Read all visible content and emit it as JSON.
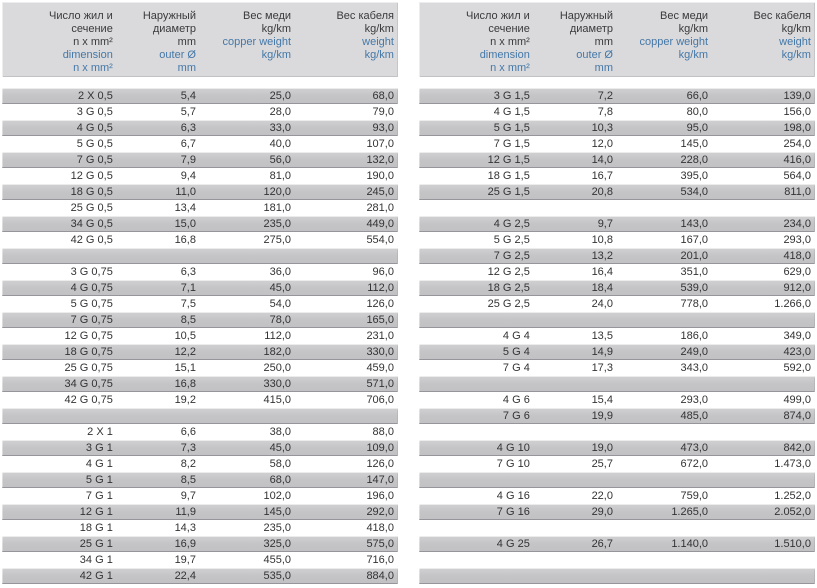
{
  "colors": {
    "accent_blue": "#4478a8",
    "row_gray": "#c4c4c6",
    "row_gray_border": "#96969a",
    "header_bg": "#dadadc",
    "text": "#333335"
  },
  "header_columns": [
    {
      "name": "dimension",
      "lines": [
        {
          "text": "Число жил и",
          "lang": "ru"
        },
        {
          "text": "сечение",
          "lang": "ru"
        },
        {
          "text": "n x mm²",
          "lang": "ru"
        },
        {
          "text": "dimension",
          "lang": "en"
        },
        {
          "text": "n x mm²",
          "lang": "en"
        }
      ]
    },
    {
      "name": "outer-diameter",
      "lines": [
        {
          "text": "Наружный",
          "lang": "ru"
        },
        {
          "text": "диаметр",
          "lang": "ru"
        },
        {
          "text": "mm",
          "lang": "ru"
        },
        {
          "text": "outer Ø",
          "lang": "en"
        },
        {
          "text": "mm",
          "lang": "en"
        }
      ]
    },
    {
      "name": "copper-weight",
      "lines": [
        {
          "text": "Вес меди",
          "lang": "ru"
        },
        {
          "text": "kg/km",
          "lang": "ru"
        },
        {
          "text": "copper weight",
          "lang": "en"
        },
        {
          "text": "kg/km",
          "lang": "en"
        }
      ]
    },
    {
      "name": "cable-weight",
      "lines": [
        {
          "text": "Вес кабеля",
          "lang": "ru"
        },
        {
          "text": "kg/km",
          "lang": "ru"
        },
        {
          "text": "weight",
          "lang": "en"
        },
        {
          "text": "kg/km",
          "lang": "en"
        }
      ]
    }
  ],
  "tables": {
    "left": {
      "rows": [
        [
          "2 X 0,5",
          "5,4",
          "25,0",
          "68,0"
        ],
        [
          "3 G 0,5",
          "5,7",
          "28,0",
          "79,0"
        ],
        [
          "4 G 0,5",
          "6,3",
          "33,0",
          "93,0"
        ],
        [
          "5 G 0,5",
          "6,7",
          "40,0",
          "107,0"
        ],
        [
          "7 G 0,5",
          "7,9",
          "56,0",
          "132,0"
        ],
        [
          "12 G 0,5",
          "9,4",
          "81,0",
          "190,0"
        ],
        [
          "18 G 0,5",
          "11,0",
          "120,0",
          "245,0"
        ],
        [
          "25 G 0,5",
          "13,4",
          "181,0",
          "281,0"
        ],
        [
          "34 G 0,5",
          "15,0",
          "235,0",
          "449,0"
        ],
        [
          "42 G 0,5",
          "16,8",
          "275,0",
          "554,0"
        ],
        null,
        [
          "3 G 0,75",
          "6,3",
          "36,0",
          "96,0"
        ],
        [
          "4 G 0,75",
          "7,1",
          "45,0",
          "112,0"
        ],
        [
          "5 G 0,75",
          "7,5",
          "54,0",
          "126,0"
        ],
        [
          "7 G 0,75",
          "8,5",
          "78,0",
          "165,0"
        ],
        [
          "12 G 0,75",
          "10,5",
          "112,0",
          "231,0"
        ],
        [
          "18 G 0,75",
          "12,2",
          "182,0",
          "330,0"
        ],
        [
          "25 G 0,75",
          "15,1",
          "250,0",
          "459,0"
        ],
        [
          "34 G 0,75",
          "16,8",
          "330,0",
          "571,0"
        ],
        [
          "42 G 0,75",
          "19,2",
          "415,0",
          "706,0"
        ],
        null,
        [
          "2 X 1",
          "6,6",
          "38,0",
          "88,0"
        ],
        [
          "3 G 1",
          "7,3",
          "45,0",
          "109,0"
        ],
        [
          "4 G 1",
          "8,2",
          "58,0",
          "126,0"
        ],
        [
          "5 G 1",
          "8,5",
          "68,0",
          "147,0"
        ],
        [
          "7 G 1",
          "9,7",
          "102,0",
          "196,0"
        ],
        [
          "12 G 1",
          "11,9",
          "145,0",
          "292,0"
        ],
        [
          "18 G 1",
          "14,3",
          "235,0",
          "418,0"
        ],
        [
          "25 G 1",
          "16,9",
          "325,0",
          "575,0"
        ],
        [
          "34 G 1",
          "19,7",
          "455,0",
          "716,0"
        ],
        [
          "42 G 1",
          "22,4",
          "535,0",
          "884,0"
        ]
      ]
    },
    "right": {
      "rows": [
        [
          "3 G 1,5",
          "7,2",
          "66,0",
          "139,0"
        ],
        [
          "4 G 1,5",
          "7,8",
          "80,0",
          "156,0"
        ],
        [
          "5 G 1,5",
          "10,3",
          "95,0",
          "198,0"
        ],
        [
          "7 G 1,5",
          "12,0",
          "145,0",
          "254,0"
        ],
        [
          "12 G 1,5",
          "14,0",
          "228,0",
          "416,0"
        ],
        [
          "18 G 1,5",
          "16,7",
          "395,0",
          "564,0"
        ],
        [
          "25 G 1,5",
          "20,8",
          "534,0",
          "811,0"
        ],
        null,
        [
          "4 G 2,5",
          "9,7",
          "143,0",
          "234,0"
        ],
        [
          "5 G 2,5",
          "10,8",
          "167,0",
          "293,0"
        ],
        [
          "7 G 2,5",
          "13,2",
          "201,0",
          "418,0"
        ],
        [
          "12 G 2,5",
          "16,4",
          "351,0",
          "629,0"
        ],
        [
          "18 G 2,5",
          "18,4",
          "539,0",
          "912,0"
        ],
        [
          "25 G 2,5",
          "24,0",
          "778,0",
          "1.266,0"
        ],
        null,
        [
          "4 G 4",
          "13,5",
          "186,0",
          "349,0"
        ],
        [
          "5 G 4",
          "14,9",
          "249,0",
          "423,0"
        ],
        [
          "7 G 4",
          "17,3",
          "343,0",
          "592,0"
        ],
        null,
        [
          "4 G 6",
          "15,4",
          "293,0",
          "499,0"
        ],
        [
          "7 G 6",
          "19,9",
          "485,0",
          "874,0"
        ],
        null,
        [
          "4 G 10",
          "19,0",
          "473,0",
          "842,0"
        ],
        [
          "7 G 10",
          "25,7",
          "672,0",
          "1.473,0"
        ],
        null,
        [
          "4 G 16",
          "22,0",
          "759,0",
          "1.252,0"
        ],
        [
          "7 G 16",
          "29,0",
          "1.265,0",
          "2.052,0"
        ],
        null,
        [
          "4 G 25",
          "26,7",
          "1.140,0",
          "1.510,0"
        ],
        null,
        null
      ]
    }
  }
}
